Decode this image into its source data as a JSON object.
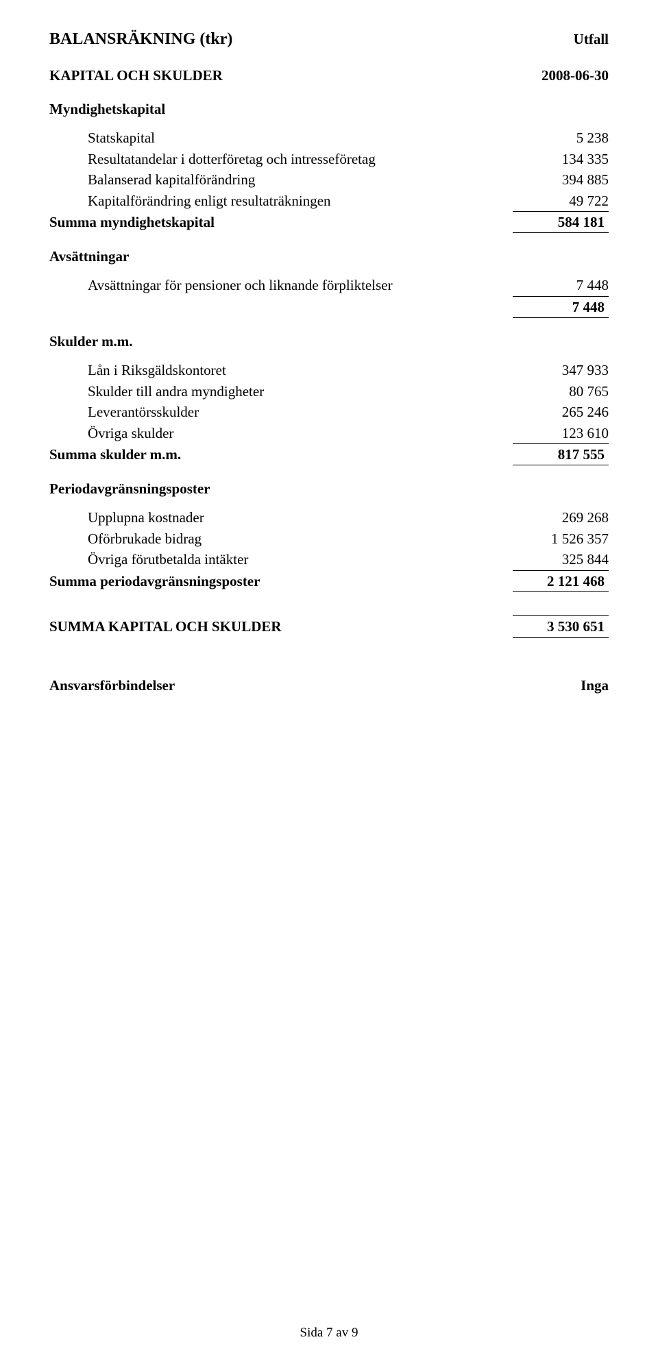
{
  "header": {
    "title": "BALANSRÄKNING (tkr)",
    "utfall_label": "Utfall",
    "kapital_skulder_label": "KAPITAL OCH SKULDER",
    "date": "2008-06-30"
  },
  "myndighetskapital": {
    "heading": "Myndighetskapital",
    "rows": [
      {
        "label": "Statskapital",
        "value": "5 238"
      },
      {
        "label": "Resultatandelar i dotterföretag och intresseföretag",
        "value": "134 335"
      },
      {
        "label": "Balanserad kapitalförändring",
        "value": "394 885"
      },
      {
        "label": "Kapitalförändring enligt resultaträkningen",
        "value": "49 722"
      }
    ],
    "sum_label": "Summa myndighetskapital",
    "sum_value": "584 181"
  },
  "avsattningar": {
    "heading": "Avsättningar",
    "row": {
      "label": "Avsättningar för pensioner och liknande förpliktelser",
      "value": "7 448"
    },
    "sub_total": "7 448"
  },
  "skulder": {
    "heading": "Skulder m.m.",
    "rows": [
      {
        "label": "Lån i Riksgäldskontoret",
        "value": "347 933"
      },
      {
        "label": "Skulder till andra myndigheter",
        "value": "80 765"
      },
      {
        "label": "Leverantörsskulder",
        "value": "265 246"
      },
      {
        "label": "Övriga skulder",
        "value": "123 610"
      }
    ],
    "sum_label": "Summa skulder m.m.",
    "sum_value": "817 555"
  },
  "periodavgr": {
    "heading": "Periodavgränsningsposter",
    "rows": [
      {
        "label": "Upplupna kostnader",
        "value": "269 268"
      },
      {
        "label": "Oförbrukade bidrag",
        "value": "1 526 357"
      },
      {
        "label": "Övriga förutbetalda intäkter",
        "value": "325 844"
      }
    ],
    "sum_label": "Summa periodavgränsningsposter",
    "sum_value": "2 121 468"
  },
  "total": {
    "label": "SUMMA KAPITAL OCH SKULDER",
    "value": "3 530 651"
  },
  "ansvars": {
    "label": "Ansvarsförbindelser",
    "value": "Inga"
  },
  "footer": "Sida 7 av 9"
}
